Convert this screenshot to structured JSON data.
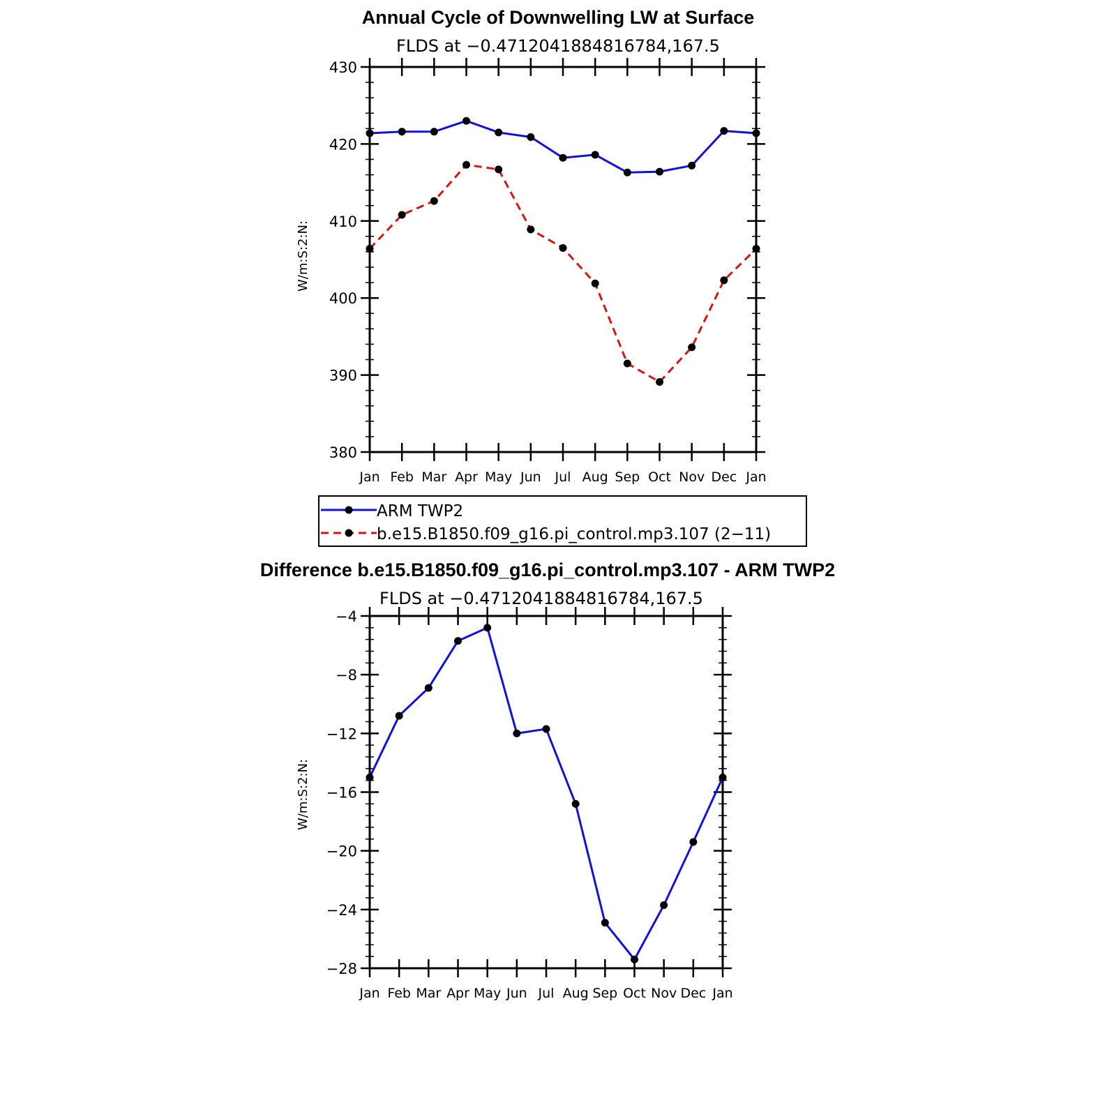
{
  "chart_data": [
    {
      "type": "line",
      "title": "Annual Cycle of Downwelling LW at Surface",
      "subtitle": "FLDS at −0.4712041884816784,167.5",
      "ylabel": "W/m:S:2:N:",
      "xlabel": "",
      "categories": [
        "Jan",
        "Feb",
        "Mar",
        "Apr",
        "May",
        "Jun",
        "Jul",
        "Aug",
        "Sep",
        "Oct",
        "Nov",
        "Dec",
        "Jan"
      ],
      "ylim": [
        380,
        430
      ],
      "yticks": [
        380,
        390,
        400,
        410,
        420,
        430
      ],
      "ytick_labels": [
        "380",
        "390",
        "400",
        "410",
        "420",
        "430"
      ],
      "series": [
        {
          "name": "ARM TWP2",
          "color": "#1010e0",
          "style": "solid",
          "values": [
            421.4,
            421.6,
            421.6,
            423.0,
            421.5,
            420.9,
            418.2,
            418.6,
            416.3,
            416.4,
            417.2,
            421.7,
            421.4
          ]
        },
        {
          "name": "b.e15.B1850.f09_g16.pi_control.mp3.107 (2−11)",
          "color": "#e01010",
          "style": "dashed",
          "values": [
            406.4,
            410.8,
            412.6,
            417.3,
            416.7,
            408.9,
            406.5,
            401.9,
            391.5,
            389.1,
            393.6,
            402.3,
            406.4
          ]
        }
      ],
      "legend": "below"
    },
    {
      "type": "line",
      "title": "Difference b.e15.B1850.f09_g16.pi_control.mp3.107 - ARM TWP2",
      "subtitle": "FLDS at −0.4712041884816784,167.5",
      "ylabel": "W/m:S:2:N:",
      "xlabel": "",
      "categories": [
        "Jan",
        "Feb",
        "Mar",
        "Apr",
        "May",
        "Jun",
        "Jul",
        "Aug",
        "Sep",
        "Oct",
        "Nov",
        "Dec",
        "Jan"
      ],
      "ylim": [
        -28,
        -4
      ],
      "yticks": [
        -28,
        -24,
        -20,
        -16,
        -12,
        -8,
        -4
      ],
      "ytick_labels": [
        "−28",
        "−24",
        "−20",
        "−16",
        "−12",
        "−8",
        "−4"
      ],
      "series": [
        {
          "name": "Difference",
          "color": "#1010e0",
          "style": "solid",
          "values": [
            -15.0,
            -10.8,
            -8.9,
            -5.7,
            -4.8,
            -12.0,
            -11.7,
            -16.8,
            -24.9,
            -27.4,
            -23.7,
            -19.4,
            -15.0
          ]
        }
      ]
    }
  ]
}
